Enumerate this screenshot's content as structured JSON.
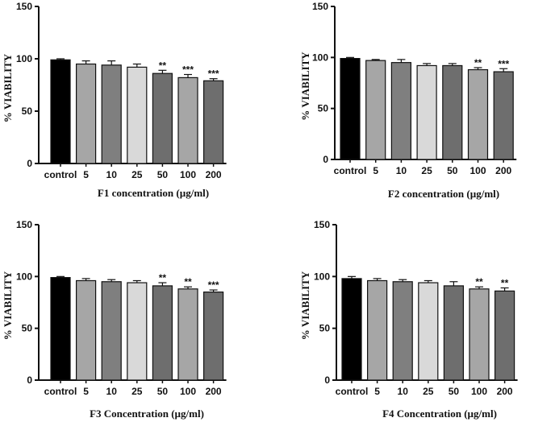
{
  "chart_data": [
    {
      "type": "bar",
      "title": "",
      "xlabel": "F1 concentration (µg/ml)",
      "ylabel": "% VIABILITY",
      "ylim": [
        0,
        150
      ],
      "yticks": [
        "0",
        "50",
        "100",
        "150"
      ],
      "categories": [
        "control",
        "5",
        "10",
        "25",
        "50",
        "100",
        "200"
      ],
      "values": [
        99,
        95,
        94,
        92,
        86,
        82,
        79
      ],
      "errors": [
        1,
        3,
        4,
        3,
        3,
        3,
        2
      ],
      "significance": [
        "",
        "",
        "",
        "",
        "**",
        "***",
        "***"
      ],
      "colors": [
        "#000000",
        "#a6a6a6",
        "#7f7f7f",
        "#d9d9d9",
        "#6e6e6e",
        "#a6a6a6",
        "#6e6e6e"
      ]
    },
    {
      "type": "bar",
      "title": "",
      "xlabel": "F2 concentration  (µg/ml)",
      "ylabel": "% VIABILITY",
      "ylim": [
        0,
        150
      ],
      "yticks": [
        "0",
        "50",
        "100",
        "150"
      ],
      "categories": [
        "control",
        "5",
        "10",
        "25",
        "50",
        "100",
        "200"
      ],
      "values": [
        99,
        97,
        95,
        92,
        92,
        88,
        86
      ],
      "errors": [
        1,
        1,
        3,
        2,
        2,
        2,
        3
      ],
      "significance": [
        "",
        "",
        "",
        "",
        "",
        "**",
        "***"
      ],
      "colors": [
        "#000000",
        "#a6a6a6",
        "#7f7f7f",
        "#d9d9d9",
        "#6e6e6e",
        "#a6a6a6",
        "#6e6e6e"
      ]
    },
    {
      "type": "bar",
      "title": "",
      "xlabel": "F3 Concentration (µg/ml)",
      "ylabel": "% VIABILITY",
      "ylim": [
        0,
        150
      ],
      "yticks": [
        "0",
        "50",
        "100",
        "150"
      ],
      "categories": [
        "control",
        "5",
        "10",
        "25",
        "50",
        "100",
        "200"
      ],
      "values": [
        99,
        96,
        95,
        94,
        91,
        88,
        85
      ],
      "errors": [
        1,
        2,
        2,
        2,
        3,
        2,
        2
      ],
      "significance": [
        "",
        "",
        "",
        "",
        "**",
        "**",
        "***"
      ],
      "colors": [
        "#000000",
        "#a6a6a6",
        "#7f7f7f",
        "#d9d9d9",
        "#6e6e6e",
        "#a6a6a6",
        "#6e6e6e"
      ]
    },
    {
      "type": "bar",
      "title": "",
      "xlabel": "F4 Concentration (µg/ml)",
      "ylabel": "% VIABILITY",
      "ylim": [
        0,
        150
      ],
      "yticks": [
        "0",
        "50",
        "100",
        "150"
      ],
      "categories": [
        "control",
        "5",
        "10",
        "25",
        "50",
        "100",
        "200"
      ],
      "values": [
        98,
        96,
        95,
        94,
        91,
        88,
        86
      ],
      "errors": [
        2,
        2,
        2,
        2,
        4,
        2,
        3
      ],
      "significance": [
        "",
        "",
        "",
        "",
        "",
        "**",
        "**"
      ],
      "colors": [
        "#000000",
        "#a6a6a6",
        "#7f7f7f",
        "#d9d9d9",
        "#6e6e6e",
        "#a6a6a6",
        "#6e6e6e"
      ]
    }
  ]
}
